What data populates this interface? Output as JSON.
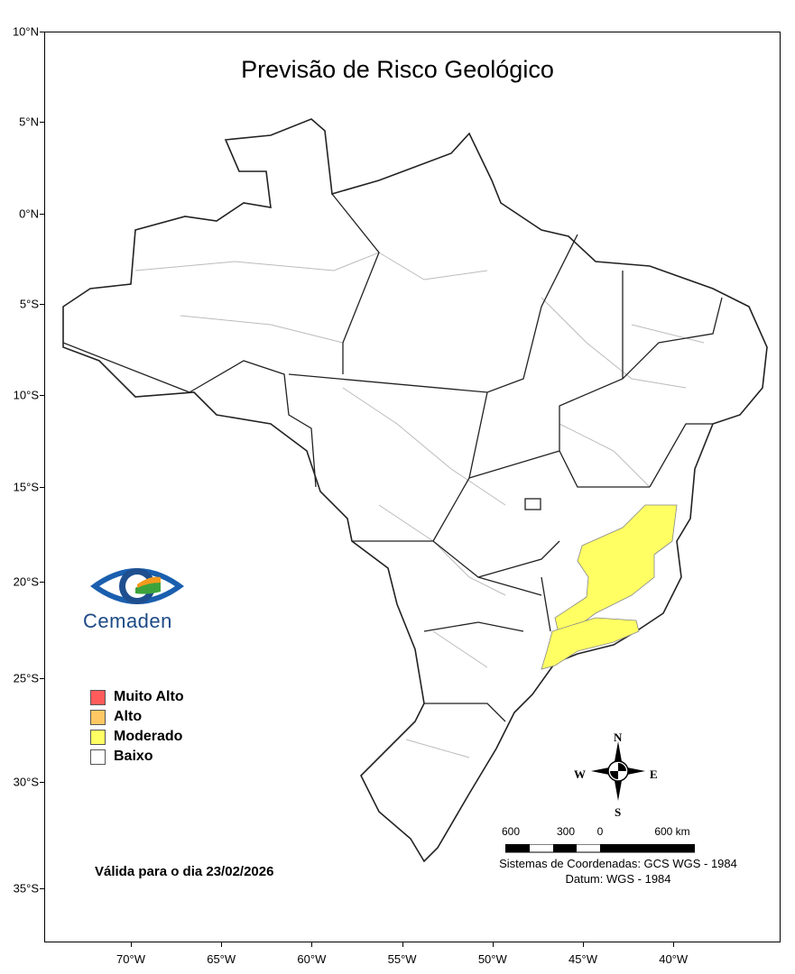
{
  "title": "Previsão de Risco Geológico",
  "lat_labels": [
    "10°N",
    "5°N",
    "0°N",
    "5°S",
    "10°S",
    "15°S",
    "20°S",
    "25°S",
    "30°S",
    "35°S"
  ],
  "lon_labels": [
    "70°W",
    "65°W",
    "60°W",
    "55°W",
    "50°W",
    "45°W",
    "40°W"
  ],
  "logo": {
    "text": "Cemaden"
  },
  "legend": [
    {
      "label": "Muito Alto",
      "color": "#ff5b5b"
    },
    {
      "label": "Alto",
      "color": "#ffc864"
    },
    {
      "label": "Moderado",
      "color": "#ffff64"
    },
    {
      "label": "Baixo",
      "color": "#ffffff"
    }
  ],
  "validity": "Válida para o dia 23/02/2026",
  "compass": {
    "n": "N",
    "s": "S",
    "e": "E",
    "w": "W"
  },
  "scale_bar": {
    "labels": [
      "600",
      "300",
      "0",
      "600 km"
    ]
  },
  "coordinate_system": "Sistemas de Coordenadas: GCS WGS - 1984",
  "datum": "Datum: WGS - 1984",
  "highlighted_level": "Moderado"
}
